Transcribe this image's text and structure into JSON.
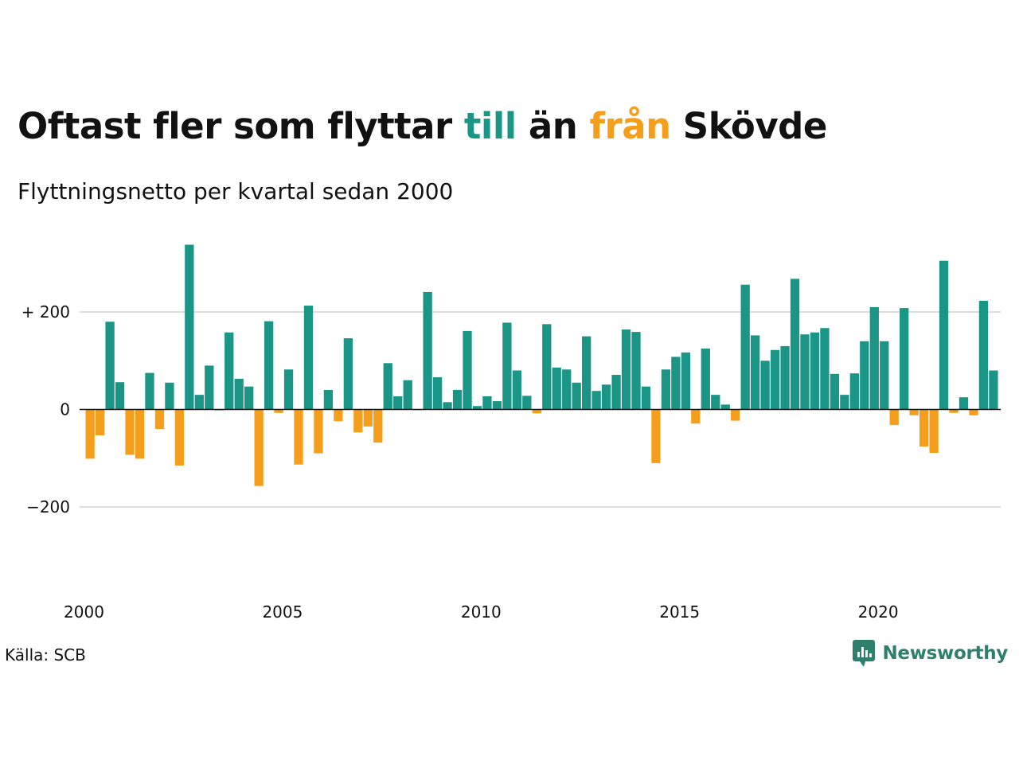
{
  "header": {
    "title_part1": "Oftast fler som flyttar ",
    "title_up": "till",
    "title_part2": " än ",
    "title_down": "från",
    "title_part3": " Skövde",
    "subtitle": "Flyttningsnetto per kvartal sedan 2000"
  },
  "footer": {
    "source": "Källa: SCB",
    "brand": "Newsworthy"
  },
  "colors": {
    "positive": "#1a9586",
    "negative": "#f59e1c",
    "grid": "#dddddd",
    "text": "#111111"
  },
  "chart_data": {
    "type": "bar",
    "x_start": "2000 Q1",
    "frequency": "quarterly",
    "y_ticks": [
      200,
      0,
      -200
    ],
    "y_tick_labels": [
      "+ 200",
      "0",
      "−200"
    ],
    "x_ticks": [
      2000,
      2005,
      2010,
      2015,
      2020
    ],
    "x_tick_labels": [
      "2000",
      "2005",
      "2010",
      "2015",
      "2020"
    ],
    "ylim": [
      -370,
      340
    ],
    "grid": true,
    "values": [
      -101,
      -53,
      180,
      56,
      -93,
      -101,
      75,
      -40,
      55,
      -115,
      338,
      30,
      90,
      -2,
      158,
      63,
      47,
      -157,
      181,
      -7,
      82,
      -113,
      213,
      -90,
      40,
      -24,
      146,
      -47,
      -35,
      -68,
      95,
      27,
      60,
      -1,
      241,
      66,
      15,
      40,
      161,
      7,
      27,
      17,
      178,
      80,
      28,
      -8,
      175,
      86,
      82,
      55,
      150,
      38,
      51,
      71,
      164,
      159,
      47,
      -110,
      82,
      108,
      117,
      -29,
      125,
      30,
      10,
      -23,
      256,
      152,
      100,
      122,
      130,
      268,
      154,
      158,
      167,
      73,
      30,
      74,
      140,
      210,
      140,
      -32,
      208,
      -12,
      -76,
      -89,
      305,
      -7,
      25,
      -12,
      223,
      80
    ]
  }
}
